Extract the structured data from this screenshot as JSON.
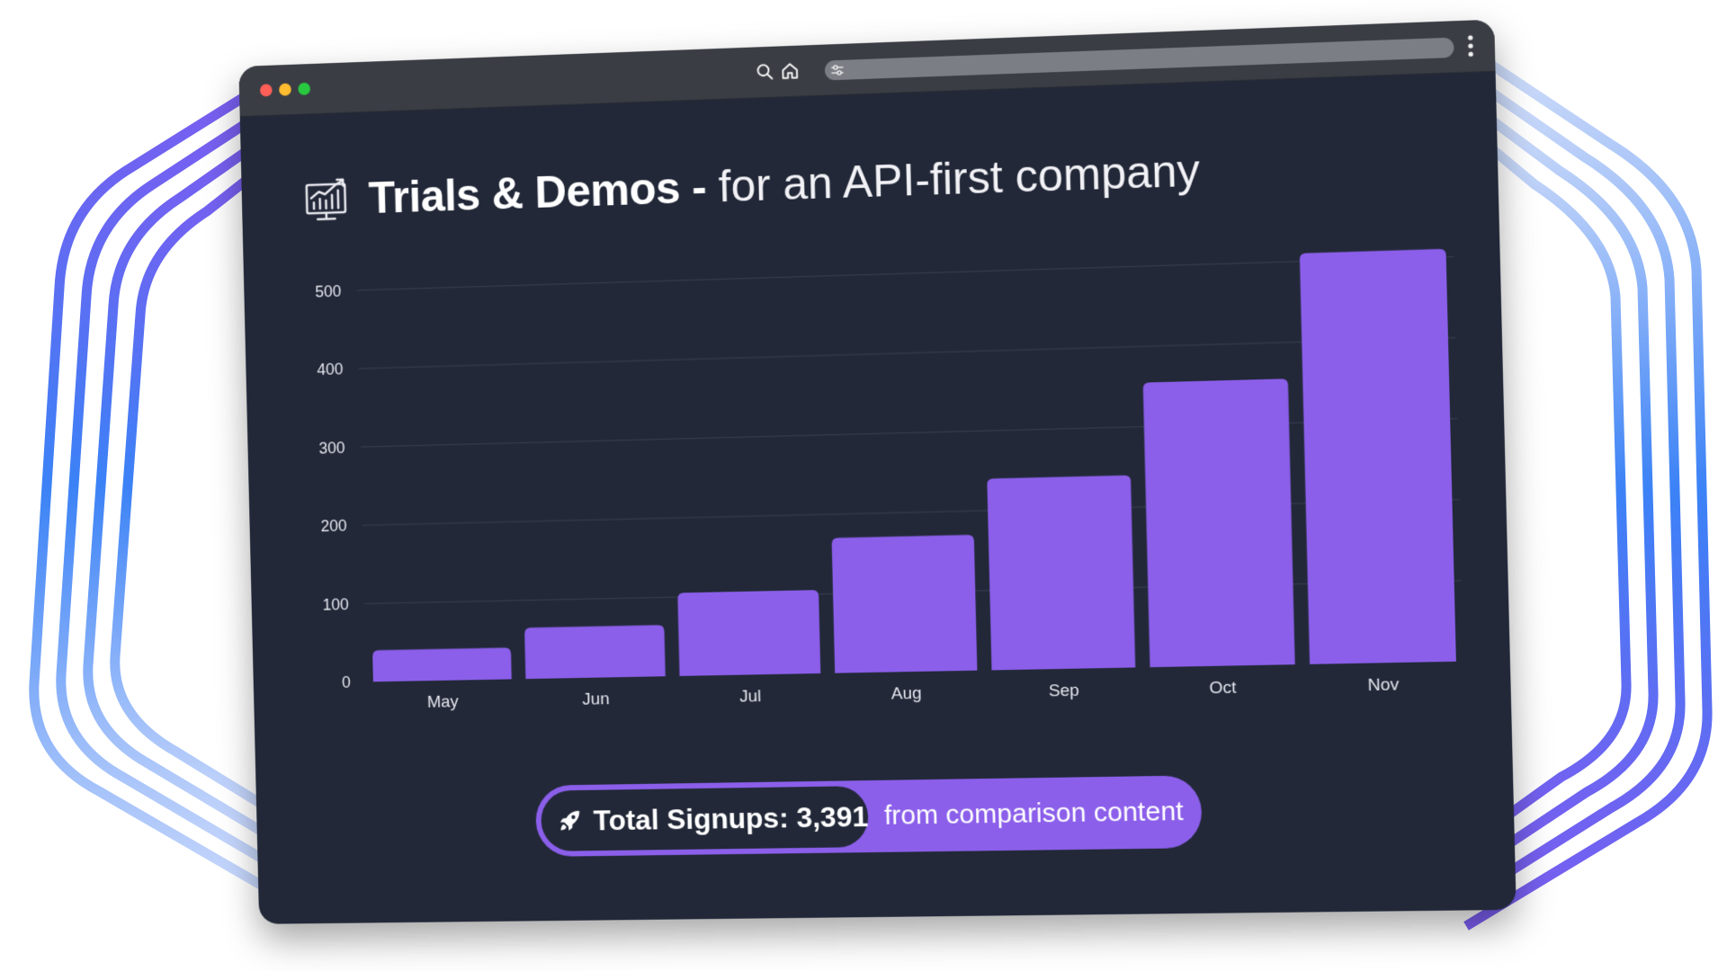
{
  "window": {
    "menu_icon": "more-vertical-icon",
    "search_icon": "search-icon",
    "home_icon": "home-icon",
    "settings_icon": "sliders-icon"
  },
  "header": {
    "icon": "chart-growth-icon",
    "title_strong": "Trials & Demos -",
    "title_light": "for an API-first company"
  },
  "chart_data": {
    "type": "bar",
    "categories": [
      "May",
      "Jun",
      "Jul",
      "Aug",
      "Sep",
      "Oct",
      "Nov"
    ],
    "values": [
      40,
      65,
      105,
      170,
      240,
      355,
      510
    ],
    "ylim": [
      0,
      520
    ],
    "yticks": [
      0,
      100,
      200,
      300,
      400,
      500
    ],
    "grid": true,
    "title": "",
    "xlabel": "",
    "ylabel": "",
    "bar_color": "#8b5fea"
  },
  "summary": {
    "icon": "rocket-icon",
    "label": "Total Signups: 3,391",
    "suffix": "from comparison content"
  },
  "colors": {
    "accent": "#8b5fea",
    "background": "#222838",
    "deco_purple": "#7c5cf0",
    "deco_blue": "#3b82f6"
  }
}
